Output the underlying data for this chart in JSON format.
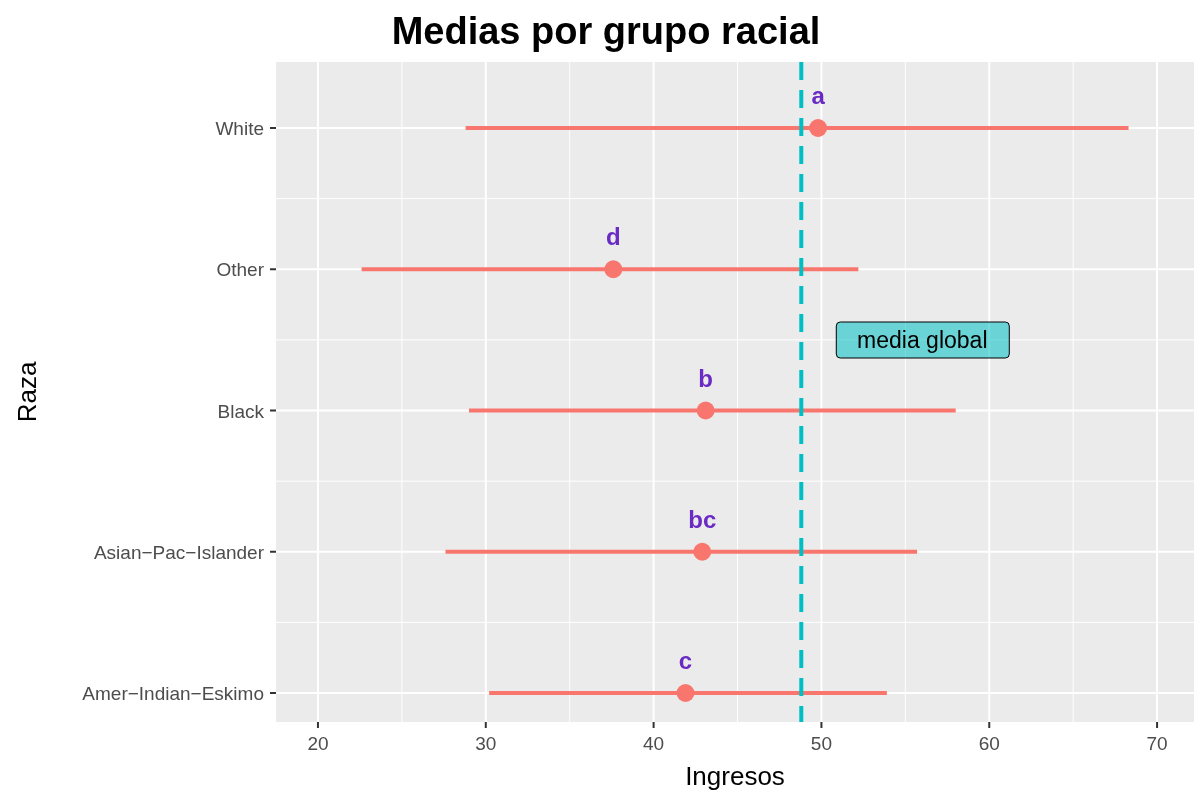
{
  "chart_data": {
    "type": "scatter",
    "orientation": "horizontal",
    "title": "Medias por grupo racial",
    "xlabel": "Ingresos",
    "ylabel": "Raza",
    "categories": [
      "White",
      "Other",
      "Black",
      "Asian−Pac−Islander",
      "Amer−Indian−Eskimo"
    ],
    "series": [
      {
        "color": "#f8766d",
        "values": [
          49.8,
          37.6,
          43.1,
          42.9,
          41.9
        ],
        "errors": [
          [
            28.8,
            68.3
          ],
          [
            22.6,
            52.2
          ],
          [
            29.0,
            58.0
          ],
          [
            27.6,
            55.7
          ],
          [
            30.2,
            53.9
          ]
        ],
        "value_labels": [
          "a",
          "d",
          "b",
          "bc",
          "c"
        ]
      }
    ],
    "xlim": [
      17.5,
      72.2
    ],
    "xticks": [
      20,
      30,
      40,
      50,
      60,
      70
    ],
    "grid": true,
    "marker": "circle",
    "ref_lines": [
      {
        "axis": "x",
        "value": 48.8,
        "label": "media global",
        "color": "#00bfc4",
        "line_style": "dashed"
      }
    ]
  }
}
